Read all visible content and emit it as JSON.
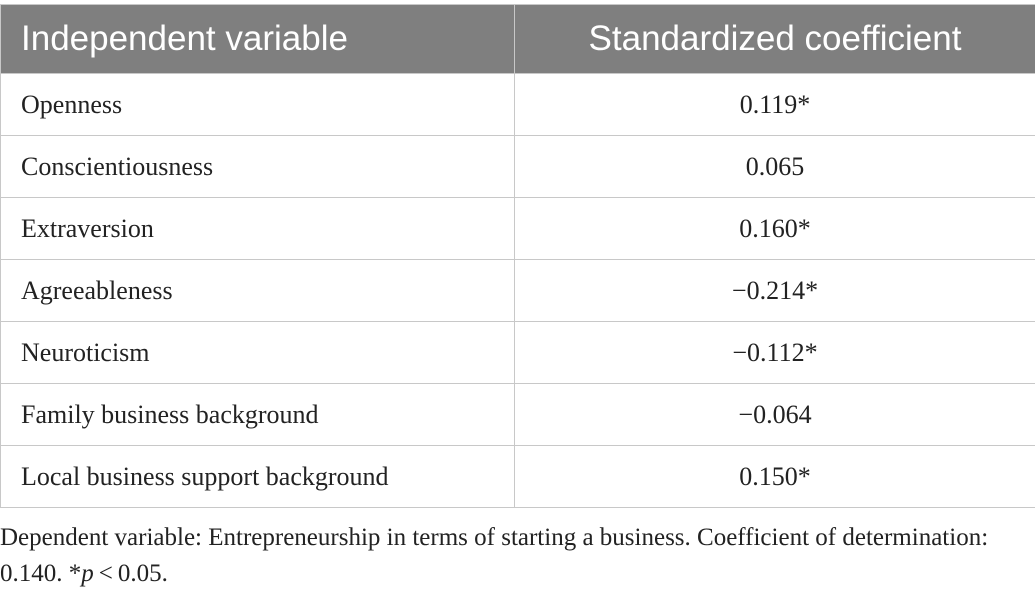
{
  "table": {
    "headers": [
      "Independent variable",
      "Standardized coefficient"
    ],
    "rows": [
      {
        "variable": "Openness",
        "coefficient": "0.119*"
      },
      {
        "variable": "Conscientiousness",
        "coefficient": "0.065"
      },
      {
        "variable": "Extraversion",
        "coefficient": "0.160*"
      },
      {
        "variable": "Agreeableness",
        "coefficient": "−0.214*"
      },
      {
        "variable": "Neuroticism",
        "coefficient": "−0.112*"
      },
      {
        "variable": "Family business background",
        "coefficient": "−0.064"
      },
      {
        "variable": "Local business support background",
        "coefficient": "0.150*"
      }
    ],
    "header_bg": "#7f7f7f",
    "border_color": "#c8c8c8"
  },
  "footnote": {
    "text_before": "Dependent variable: Entrepreneurship in terms of starting a business. Coefficient of determination: 0.140. *",
    "italic": "p",
    "text_after": " < 0.05."
  }
}
